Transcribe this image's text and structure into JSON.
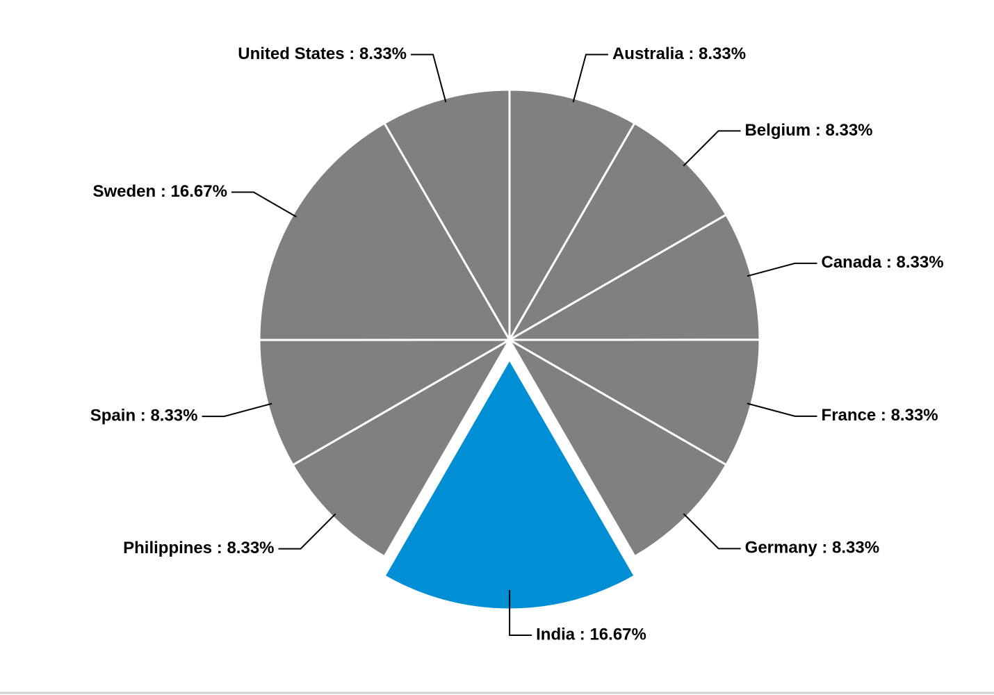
{
  "chart_data": {
    "type": "pie",
    "values": [
      8.33,
      8.33,
      8.33,
      8.33,
      8.33,
      16.67,
      8.33,
      8.33,
      16.67,
      8.33
    ],
    "value_labels": [
      "Australia : 8.33%",
      "Belgium : 8.33%",
      "Canada : 8.33%",
      "France : 8.33%",
      "Germany : 8.33%",
      "India : 16.67%",
      "Philippines : 8.33%",
      "Spain : 8.33%",
      "Sweden : 16.67%",
      "United States : 8.33%"
    ],
    "colors": [
      "#808080",
      "#808080",
      "#808080",
      "#808080",
      "#808080",
      "#008fd5",
      "#808080",
      "#808080",
      "#808080",
      "#808080"
    ],
    "exploded": [
      5
    ]
  }
}
